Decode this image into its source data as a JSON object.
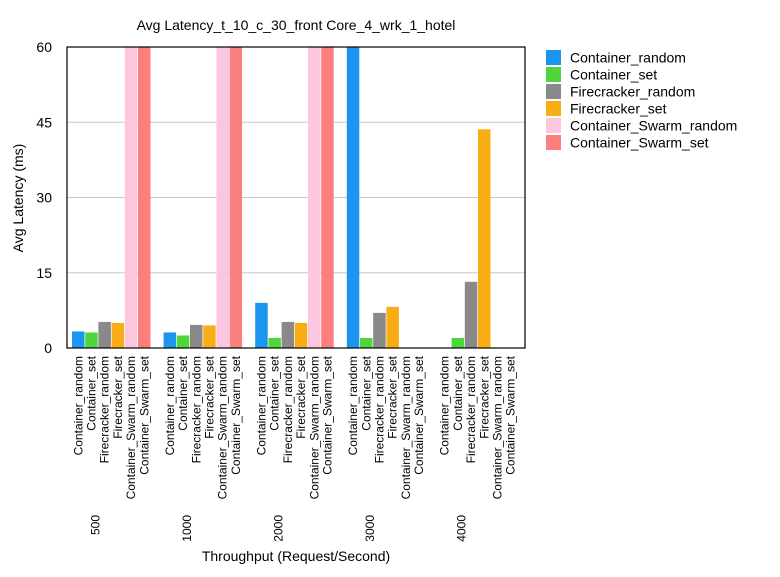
{
  "chart_data": {
    "type": "bar",
    "title": "Avg Latency_t_10_c_30_front Core_4_wrk_1_hotel",
    "xlabel": "Throughput (Request/Second)",
    "ylabel": "Avg Latency (ms)",
    "ylim": [
      0,
      60
    ],
    "yticks": [
      0,
      15,
      30,
      45,
      60
    ],
    "grid": true,
    "legend_position": "right",
    "categories": [
      "500",
      "1000",
      "2000",
      "3000",
      "4000"
    ],
    "series": [
      {
        "name": "Container_random",
        "color": "#1a96f0",
        "values": [
          3.3,
          3.1,
          9.0,
          60,
          0
        ]
      },
      {
        "name": "Container_set",
        "color": "#4fd63c",
        "values": [
          3.1,
          2.5,
          2.0,
          2.0,
          2.0
        ]
      },
      {
        "name": "Firecracker_random",
        "color": "#898989",
        "values": [
          5.2,
          4.6,
          5.2,
          7.0,
          13.2
        ]
      },
      {
        "name": "Firecracker_set",
        "color": "#f9ad14",
        "values": [
          5.0,
          4.5,
          5.0,
          8.2,
          43.6
        ]
      },
      {
        "name": "Container_Swarm_random",
        "color": "#fdc6df",
        "values": [
          60,
          60,
          60,
          0,
          0
        ]
      },
      {
        "name": "Container_Swarm_set",
        "color": "#fb7f7f",
        "values": [
          60,
          60,
          60,
          0,
          0
        ]
      }
    ]
  }
}
